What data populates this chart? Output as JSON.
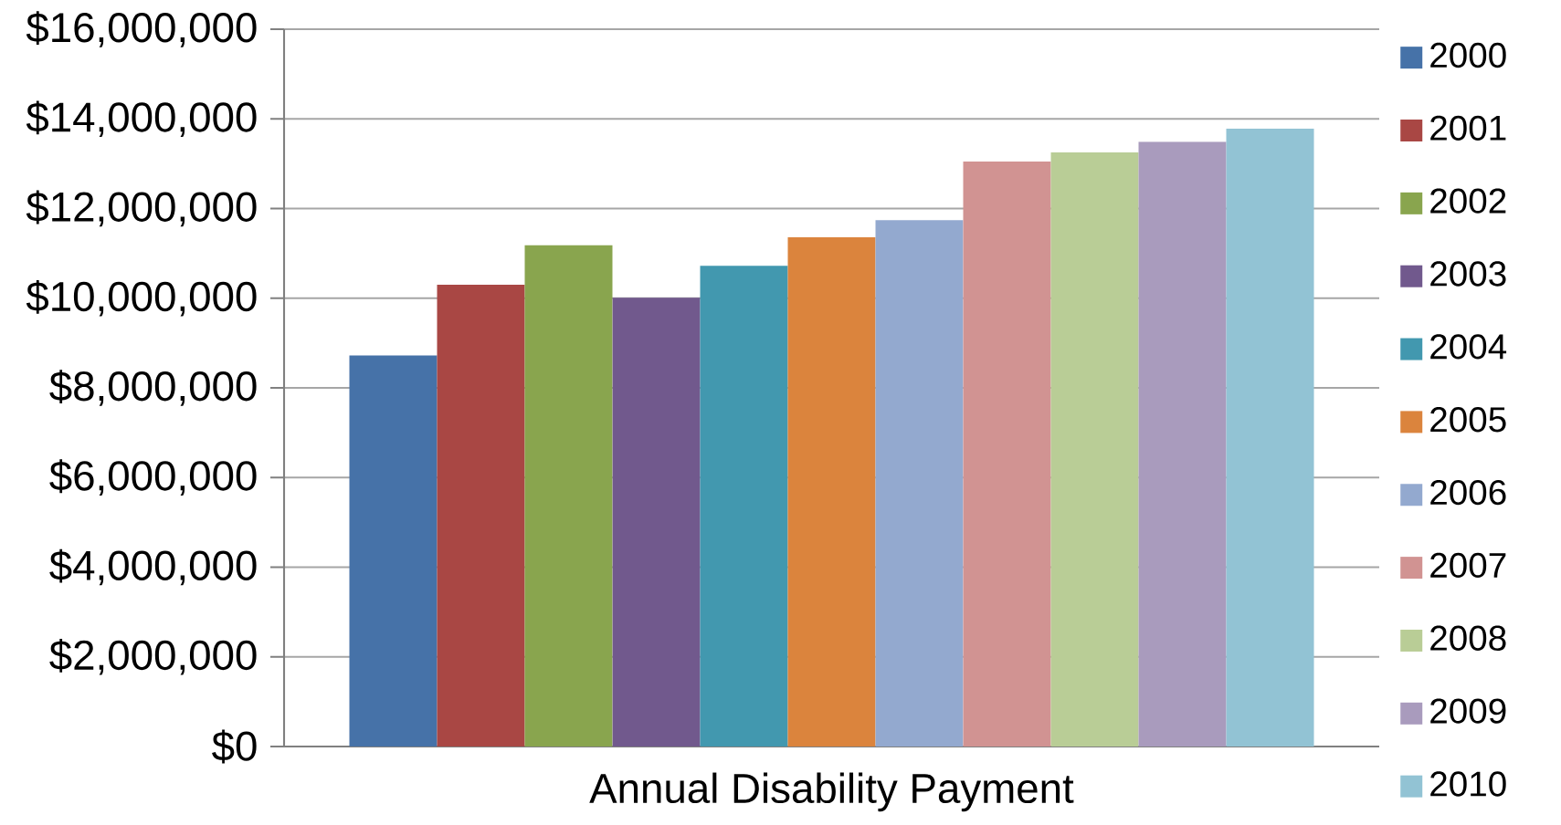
{
  "chart_data": {
    "type": "bar",
    "categories": [
      "Annual Disability Payment"
    ],
    "series": [
      {
        "name": "2000",
        "color": "#4672a8",
        "values": [
          8720000
        ]
      },
      {
        "name": "2001",
        "color": "#a94744",
        "values": [
          10300000
        ]
      },
      {
        "name": "2002",
        "color": "#89a54e",
        "values": [
          11180000
        ]
      },
      {
        "name": "2003",
        "color": "#71598d",
        "values": [
          10010000
        ]
      },
      {
        "name": "2004",
        "color": "#4298af",
        "values": [
          10720000
        ]
      },
      {
        "name": "2005",
        "color": "#db843d",
        "values": [
          11360000
        ]
      },
      {
        "name": "2006",
        "color": "#93a9cf",
        "values": [
          11740000
        ]
      },
      {
        "name": "2007",
        "color": "#d19392",
        "values": [
          13050000
        ]
      },
      {
        "name": "2008",
        "color": "#b9cd96",
        "values": [
          13250000
        ]
      },
      {
        "name": "2009",
        "color": "#a99bbd",
        "values": [
          13490000
        ]
      },
      {
        "name": "2010",
        "color": "#92c3d4",
        "values": [
          13780000
        ]
      }
    ],
    "ylim": [
      0,
      16000000
    ],
    "yticks": [
      {
        "value": 0,
        "label": "$0"
      },
      {
        "value": 2000000,
        "label": "$2,000,000"
      },
      {
        "value": 4000000,
        "label": "$4,000,000"
      },
      {
        "value": 6000000,
        "label": "$6,000,000"
      },
      {
        "value": 8000000,
        "label": "$8,000,000"
      },
      {
        "value": 10000000,
        "label": "$10,000,000"
      },
      {
        "value": 12000000,
        "label": "$12,000,000"
      },
      {
        "value": 14000000,
        "label": "$14,000,000"
      },
      {
        "value": 16000000,
        "label": "$16,000,000"
      }
    ],
    "grid": "y",
    "legend": "right"
  }
}
